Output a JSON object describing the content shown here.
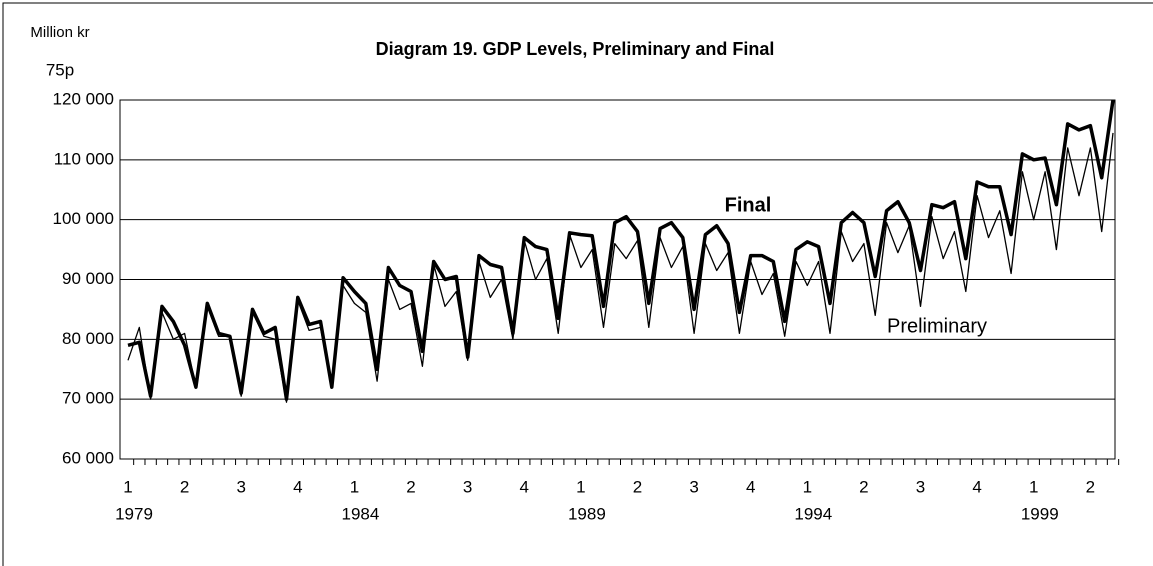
{
  "chart_data": {
    "type": "line",
    "title": "Diagram 19.  GDP Levels,  Preliminary and Final",
    "y_label": "Million kr",
    "y_label_note": "75p",
    "categories": [
      "1",
      null,
      null,
      null,
      null,
      "2",
      null,
      null,
      null,
      null,
      "3",
      null,
      null,
      null,
      null,
      "4",
      null,
      null,
      null,
      null,
      "1",
      null,
      null,
      null,
      null,
      "2",
      null,
      null,
      null,
      null,
      "3",
      null,
      null,
      null,
      null,
      "4",
      null,
      null,
      null,
      null,
      "1",
      null,
      null,
      null,
      null,
      "2",
      null,
      null,
      null,
      null,
      "3",
      null,
      null,
      null,
      null,
      "4",
      null,
      null,
      null,
      null,
      "1",
      null,
      null,
      null,
      null,
      "2",
      null,
      null,
      null,
      null,
      "3",
      null,
      null,
      null,
      null,
      "4",
      null,
      null,
      null,
      null,
      "1",
      null,
      null,
      null,
      null,
      "2",
      null,
      null
    ],
    "category_years": [
      "1979",
      null,
      null,
      null,
      null,
      null,
      null,
      null,
      null,
      null,
      null,
      null,
      null,
      null,
      null,
      null,
      null,
      null,
      null,
      null,
      "1984",
      null,
      null,
      null,
      null,
      null,
      null,
      null,
      null,
      null,
      null,
      null,
      null,
      null,
      null,
      null,
      null,
      null,
      null,
      null,
      "1989",
      null,
      null,
      null,
      null,
      null,
      null,
      null,
      null,
      null,
      null,
      null,
      null,
      null,
      null,
      null,
      null,
      null,
      null,
      null,
      "1994",
      null,
      null,
      null,
      null,
      null,
      null,
      null,
      null,
      null,
      null,
      null,
      null,
      null,
      null,
      null,
      null,
      null,
      null,
      null,
      "1999",
      null,
      null,
      null,
      null,
      null,
      null,
      null
    ],
    "series": [
      {
        "name": "Final",
        "color": "#000000",
        "width": 3.5,
        "values": [
          79000,
          79500,
          70500,
          85500,
          83000,
          79000,
          72000,
          86000,
          81000,
          80500,
          71000,
          85000,
          81000,
          82000,
          70000,
          87000,
          82500,
          83000,
          72000,
          90300,
          88000,
          86000,
          75000,
          92000,
          89000,
          88000,
          78000,
          93000,
          90000,
          90500,
          77000,
          94000,
          92500,
          92000,
          81000,
          97000,
          95500,
          95000,
          83500,
          97800,
          97500,
          97300,
          85500,
          99500,
          100500,
          98000,
          86000,
          98500,
          99500,
          97000,
          85000,
          97500,
          99000,
          96000,
          84500,
          94000,
          94000,
          93000,
          83000,
          95000,
          96300,
          95500,
          86000,
          99500,
          101200,
          99500,
          90500,
          101500,
          103000,
          99500,
          91500,
          102500,
          102000,
          103000,
          93500,
          106300,
          105500,
          105500,
          97500,
          111000,
          110000,
          110300,
          102500,
          116000,
          115000,
          115700,
          107000,
          120000
        ]
      },
      {
        "name": "Preliminary",
        "color": "#000000",
        "width": 1.3,
        "values": [
          76500,
          82000,
          70000,
          84500,
          80000,
          81000,
          72000,
          85500,
          80500,
          80500,
          70500,
          84500,
          80500,
          80000,
          69500,
          86500,
          81500,
          82000,
          72000,
          89000,
          86000,
          84500,
          73000,
          90000,
          85000,
          86000,
          75500,
          92500,
          85500,
          88000,
          76500,
          93000,
          87000,
          90000,
          80000,
          96500,
          90000,
          93500,
          81000,
          97500,
          92000,
          95000,
          82000,
          96000,
          93500,
          96500,
          82000,
          97000,
          92000,
          95500,
          81000,
          96000,
          91500,
          94500,
          81000,
          93000,
          87500,
          91000,
          80500,
          93000,
          89000,
          93000,
          81000,
          98000,
          93000,
          96000,
          84000,
          99500,
          94500,
          99000,
          85500,
          100500,
          93500,
          98000,
          88000,
          104000,
          97000,
          101500,
          91000,
          108000,
          100000,
          108000,
          95000,
          112000,
          104000,
          112000,
          98000,
          114500
        ]
      }
    ],
    "ylim": [
      60000,
      120000
    ],
    "yticks": [
      {
        "value": 60000,
        "label": "60 000"
      },
      {
        "value": 70000,
        "label": "70 000"
      },
      {
        "value": 80000,
        "label": "80 000"
      },
      {
        "value": 90000,
        "label": "90 000"
      },
      {
        "value": 100000,
        "label": "100 000"
      },
      {
        "value": 110000,
        "label": "110 000"
      },
      {
        "value": 120000,
        "label": "120 000"
      }
    ],
    "grid": true
  }
}
